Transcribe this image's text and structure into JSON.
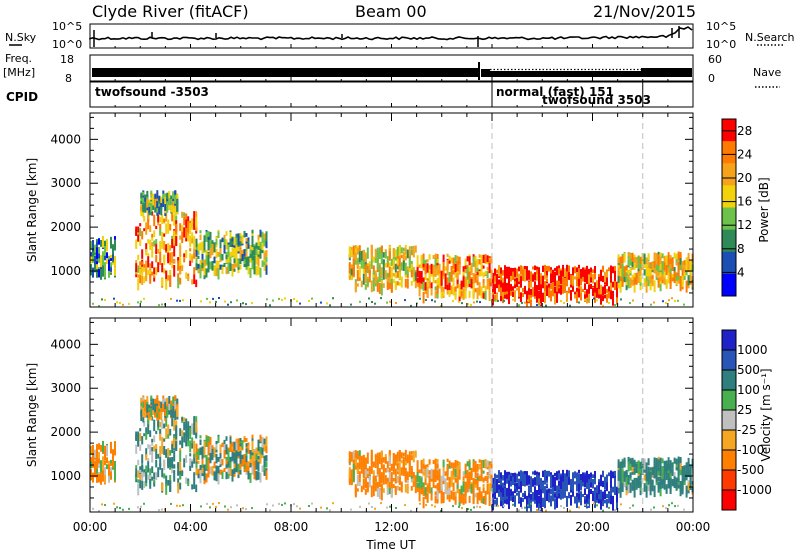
{
  "header": {
    "title": "Clyde River (fitACF)",
    "beam": "Beam 00",
    "date": "21/Nov/2015"
  },
  "summary_panels": {
    "nsky_label": "N.Sky",
    "nsky_ticks": [
      "10^5",
      "10^0"
    ],
    "nsearch_label": "N.Search",
    "nsearch_ticks": [
      "10^5",
      "10^0"
    ],
    "freq_label": "Freq.",
    "freq_unit": "[MHz]",
    "freq_ticks": [
      "18",
      "8"
    ],
    "nave_label": "Nave",
    "nave_ticks": [
      "60",
      "0"
    ],
    "cpid_label": "CPID"
  },
  "cpid_segments": [
    {
      "start_hour": 0.0,
      "end_hour": 16.0,
      "text": "twofsound -3503"
    },
    {
      "start_hour": 16.0,
      "end_hour": 22.0,
      "text": "normal (fast) 151"
    },
    {
      "start_hour": 16.0,
      "end_hour": 22.0,
      "text": "twofsound 3503"
    }
  ],
  "axes": {
    "ylabel": "Slant Range [km]",
    "yticks": [
      "1000",
      "2000",
      "3000",
      "4000"
    ],
    "ylim": [
      180,
      4600
    ],
    "xlabel": "Time UT",
    "xticks": [
      "00:00",
      "04:00",
      "08:00",
      "12:00",
      "16:00",
      "20:00",
      "00:00"
    ],
    "xlim_hours": [
      0,
      24
    ],
    "mode_change_hours": [
      16.0,
      22.0
    ]
  },
  "power_colorbar": {
    "label": "Power [dB]",
    "ticks": [
      "4",
      "8",
      "12",
      "16",
      "20",
      "24",
      "28"
    ],
    "range": [
      0,
      30
    ],
    "colors": [
      "#0000ff",
      "#1c4fb4",
      "#2e8b57",
      "#6cc24a",
      "#f2d20c",
      "#f7a21b",
      "#ff7a00",
      "#ff0000"
    ]
  },
  "velocity_colorbar": {
    "label": "Velocity [m s⁻¹]",
    "ticks": [
      "1000",
      "500",
      "100",
      "25",
      "-25",
      "-100",
      "-500",
      "-1000"
    ],
    "colors": [
      "#1e22c8",
      "#2a55b8",
      "#2f7f7f",
      "#48b04e",
      "#c0c0c0",
      "#f5a623",
      "#ff8000",
      "#ff3a00",
      "#ff0000"
    ]
  },
  "chart_data": [
    {
      "type": "heatmap",
      "title": "Power",
      "xlabel": "Time UT",
      "ylabel": "Slant Range [km]",
      "xlim": [
        0,
        24
      ],
      "ylim": [
        180,
        4600
      ],
      "zlabel": "Power [dB]",
      "regions": [
        {
          "t_start": 0.0,
          "t_end": 1.0,
          "r_center": 1400,
          "r_half": 400,
          "value": 10
        },
        {
          "t_start": 1.8,
          "t_end": 4.2,
          "r_center": 1600,
          "r_half": 800,
          "value": 22
        },
        {
          "t_start": 4.2,
          "t_end": 7.0,
          "r_center": 1500,
          "r_half": 450,
          "value": 14
        },
        {
          "t_start": 2.0,
          "t_end": 3.5,
          "r_center": 2650,
          "r_half": 200,
          "value": 12
        },
        {
          "t_start": 10.3,
          "t_end": 13.0,
          "r_center": 1150,
          "r_half": 450,
          "value": 18
        },
        {
          "t_start": 13.0,
          "t_end": 16.0,
          "r_center": 950,
          "r_half": 450,
          "value": 22
        },
        {
          "t_start": 16.0,
          "t_end": 21.0,
          "r_center": 800,
          "r_half": 350,
          "value": 28
        },
        {
          "t_start": 21.0,
          "t_end": 24.0,
          "r_center": 1100,
          "r_half": 350,
          "value": 18
        }
      ]
    },
    {
      "type": "heatmap",
      "title": "Velocity",
      "xlabel": "Time UT",
      "ylabel": "Slant Range [km]",
      "xlim": [
        0,
        24
      ],
      "ylim": [
        180,
        4600
      ],
      "zlabel": "Velocity [m s⁻¹]",
      "regions": [
        {
          "t_start": 0.0,
          "t_end": 1.0,
          "r_center": 1400,
          "r_half": 400,
          "value": -150
        },
        {
          "t_start": 1.8,
          "t_end": 4.2,
          "r_center": 1600,
          "r_half": 800,
          "value": 150
        },
        {
          "t_start": 4.2,
          "t_end": 7.0,
          "r_center": 1500,
          "r_half": 450,
          "value": 60
        },
        {
          "t_start": 2.0,
          "t_end": 3.5,
          "r_center": 2650,
          "r_half": 200,
          "value": 0
        },
        {
          "t_start": 10.3,
          "t_end": 13.0,
          "r_center": 1150,
          "r_half": 450,
          "value": -200
        },
        {
          "t_start": 13.0,
          "t_end": 16.0,
          "r_center": 950,
          "r_half": 450,
          "value": -150
        },
        {
          "t_start": 16.0,
          "t_end": 21.0,
          "r_center": 800,
          "r_half": 350,
          "value": 1000
        },
        {
          "t_start": 21.0,
          "t_end": 24.0,
          "r_center": 1100,
          "r_half": 350,
          "value": 200
        }
      ]
    }
  ]
}
